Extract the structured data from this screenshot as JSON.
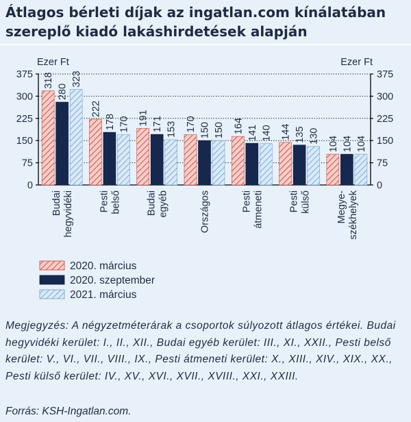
{
  "title": "Átlagos bérleti díjak az ingatlan.com kínálatában szereplő kiadó lakáshirdetések alapján",
  "chart_data": {
    "type": "bar",
    "title": "Átlagos bérleti díjak az ingatlan.com kínálatában szereplő kiadó lakáshirdetések alapján",
    "ylabel_left": "Ezer Ft",
    "ylabel_right": "Ezer Ft",
    "ylim": [
      0,
      375
    ],
    "yticks": [
      0,
      75,
      150,
      225,
      300,
      375
    ],
    "grid": true,
    "categories": [
      [
        "Budai",
        "hegyvidéki"
      ],
      [
        "Pesti",
        "belső"
      ],
      [
        "Budai",
        "egyéb"
      ],
      [
        "Országos"
      ],
      [
        "Pesti",
        "átmeneti"
      ],
      [
        "Pesti",
        "külső"
      ],
      [
        "Megye-",
        "székhelyek"
      ]
    ],
    "series": [
      {
        "name": "2020. március",
        "values": [
          318,
          222,
          191,
          170,
          164,
          144,
          104
        ],
        "color": "#f0b3ad",
        "pattern": "hatch-red"
      },
      {
        "name": "2020. szeptember",
        "values": [
          280,
          178,
          171,
          150,
          141,
          135,
          104
        ],
        "color": "#17284f",
        "pattern": "solid"
      },
      {
        "name": "2021. március",
        "values": [
          323,
          170,
          153,
          150,
          140,
          130,
          104
        ],
        "color": "#c9e0f3",
        "pattern": "hatch-blue"
      }
    ],
    "legend_position": "bottom-left"
  },
  "note": "Megjegyzés: A négyzetméterárak a csoportok súlyozott átlagos értékei. Budai hegyvidéki kerület: I., II., XII., Budai egyéb kerület: III., XI., XXII., Pesti belső kerület: V., VI., VII., VIII., IX., Pesti átmeneti kerület: X., XIII., XIV., XIX., XX., Pesti külső kerület: IV., XV., XVI., XVII., XVIII., XXI., XXIII.",
  "source": "Forrás: KSH-Ingatlan.com."
}
